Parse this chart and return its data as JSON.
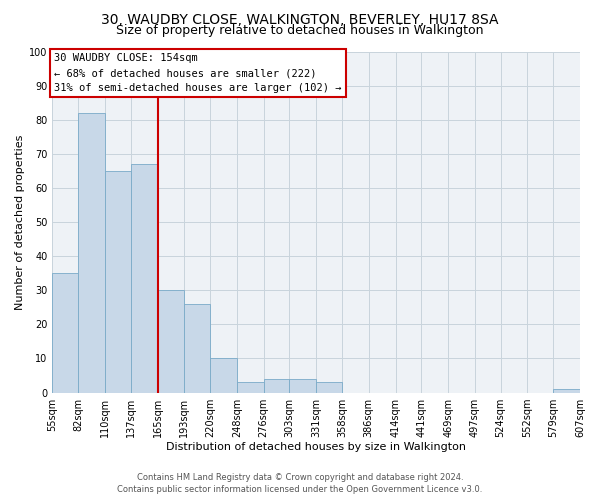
{
  "title": "30, WAUDBY CLOSE, WALKINGTON, BEVERLEY, HU17 8SA",
  "subtitle": "Size of property relative to detached houses in Walkington",
  "xlabel": "Distribution of detached houses by size in Walkington",
  "ylabel": "Number of detached properties",
  "bar_color": "#c8d8e8",
  "bar_edge_color": "#7aaac8",
  "grid_color": "#c8d4dc",
  "background_color": "#eef2f6",
  "vline_color": "#cc0000",
  "bins": [
    55,
    82,
    110,
    137,
    165,
    193,
    220,
    248,
    276,
    303,
    331,
    358,
    386,
    414,
    441,
    469,
    497,
    524,
    552,
    579,
    607
  ],
  "bin_labels": [
    "55sqm",
    "82sqm",
    "110sqm",
    "137sqm",
    "165sqm",
    "193sqm",
    "220sqm",
    "248sqm",
    "276sqm",
    "303sqm",
    "331sqm",
    "358sqm",
    "386sqm",
    "414sqm",
    "441sqm",
    "469sqm",
    "497sqm",
    "524sqm",
    "552sqm",
    "579sqm",
    "607sqm"
  ],
  "counts": [
    35,
    82,
    65,
    67,
    30,
    26,
    10,
    3,
    4,
    4,
    3,
    0,
    0,
    0,
    0,
    0,
    0,
    0,
    0,
    1
  ],
  "ylim": [
    0,
    100
  ],
  "yticks": [
    0,
    10,
    20,
    30,
    40,
    50,
    60,
    70,
    80,
    90,
    100
  ],
  "annotation_line1": "30 WAUDBY CLOSE: 154sqm",
  "annotation_line2": "← 68% of detached houses are smaller (222)",
  "annotation_line3": "31% of semi-detached houses are larger (102) →",
  "footer_line1": "Contains HM Land Registry data © Crown copyright and database right 2024.",
  "footer_line2": "Contains public sector information licensed under the Open Government Licence v3.0.",
  "annotation_box_color": "#cc0000",
  "title_fontsize": 10,
  "subtitle_fontsize": 9,
  "axis_label_fontsize": 8,
  "tick_fontsize": 7,
  "annotation_fontsize": 7.5,
  "footer_fontsize": 6
}
